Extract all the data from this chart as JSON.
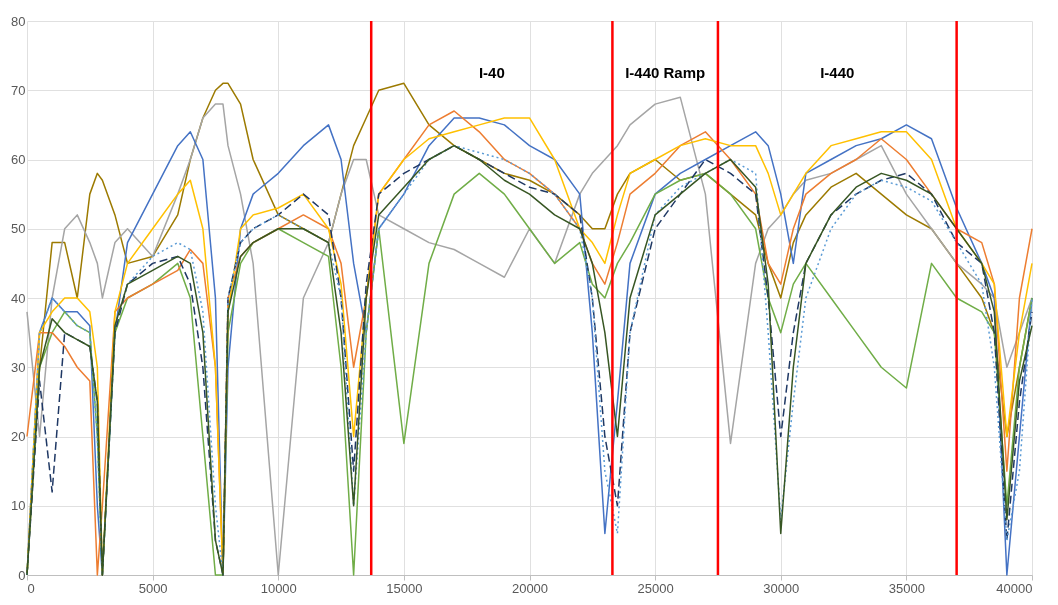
{
  "chart_data": {
    "type": "line",
    "x": [
      0,
      500,
      1000,
      1500,
      2000,
      2500,
      2800,
      3000,
      3500,
      4000,
      5000,
      6000,
      6500,
      7000,
      7500,
      7800,
      8000,
      8500,
      9000,
      10000,
      11000,
      12000,
      12500,
      13000,
      13500,
      14000,
      15000,
      16000,
      17000,
      18000,
      19000,
      20000,
      21000,
      22000,
      22500,
      23000,
      23500,
      24000,
      25000,
      26000,
      27000,
      28000,
      29000,
      29500,
      30000,
      30500,
      31000,
      32000,
      33000,
      34000,
      35000,
      36000,
      37000,
      38000,
      38500,
      39000,
      39500,
      40000
    ],
    "series": [
      {
        "color": "#9c7a00",
        "values": [
          0,
          30,
          48,
          48,
          40,
          55,
          58,
          57,
          52,
          45,
          46,
          52,
          60,
          66,
          70,
          71,
          71,
          68,
          60,
          52,
          50,
          48,
          55,
          62,
          66,
          70,
          71,
          65,
          62,
          60,
          58,
          57,
          55,
          52,
          50,
          50,
          55,
          58,
          60,
          57,
          58,
          55,
          52,
          45,
          40,
          48,
          52,
          56,
          58,
          55,
          52,
          50,
          45,
          40,
          35,
          20,
          30,
          40
        ]
      },
      {
        "color": "#a5a5a5",
        "values": [
          38,
          20,
          40,
          50,
          52,
          48,
          45,
          40,
          48,
          50,
          46,
          55,
          60,
          66,
          68,
          68,
          62,
          55,
          45,
          0,
          40,
          48,
          55,
          60,
          60,
          52,
          50,
          48,
          47,
          45,
          43,
          50,
          45,
          55,
          58,
          60,
          62,
          65,
          68,
          69,
          55,
          19,
          45,
          50,
          52,
          55,
          57,
          58,
          60,
          62,
          55,
          50,
          45,
          42,
          40,
          30,
          35,
          40
        ]
      },
      {
        "color": "#4472c4",
        "values": [
          0,
          35,
          40,
          38,
          38,
          36,
          10,
          0,
          35,
          48,
          55,
          62,
          64,
          60,
          40,
          0,
          30,
          50,
          55,
          58,
          62,
          65,
          60,
          45,
          35,
          50,
          55,
          62,
          66,
          66,
          65,
          62,
          60,
          55,
          35,
          6,
          25,
          45,
          55,
          58,
          60,
          62,
          64,
          62,
          55,
          45,
          58,
          60,
          62,
          63,
          65,
          63,
          53,
          45,
          40,
          0,
          20,
          40
        ]
      },
      {
        "color": "#70ad47",
        "values": [
          0,
          30,
          35,
          38,
          36,
          35,
          20,
          0,
          35,
          40,
          42,
          45,
          40,
          20,
          0,
          0,
          35,
          45,
          48,
          50,
          48,
          46,
          30,
          0,
          35,
          50,
          19,
          45,
          55,
          58,
          55,
          50,
          45,
          48,
          42,
          40,
          45,
          48,
          55,
          57,
          58,
          55,
          50,
          40,
          35,
          42,
          45,
          40,
          35,
          30,
          27,
          45,
          40,
          38,
          35,
          10,
          30,
          40
        ]
      },
      {
        "color": "#ed7d31",
        "values": [
          20,
          35,
          35,
          33,
          30,
          28,
          0,
          10,
          38,
          40,
          42,
          44,
          47,
          45,
          30,
          0,
          40,
          46,
          48,
          50,
          52,
          50,
          45,
          30,
          40,
          55,
          60,
          65,
          67,
          64,
          60,
          58,
          55,
          50,
          45,
          42,
          48,
          55,
          58,
          62,
          64,
          60,
          55,
          45,
          42,
          50,
          55,
          58,
          60,
          63,
          60,
          55,
          50,
          48,
          42,
          15,
          40,
          50
        ]
      },
      {
        "color": "#ffc000",
        "values": [
          0,
          35,
          38,
          40,
          40,
          38,
          30,
          0,
          38,
          45,
          50,
          55,
          57,
          50,
          30,
          0,
          38,
          50,
          52,
          53,
          55,
          50,
          42,
          20,
          40,
          55,
          60,
          63,
          64,
          65,
          66,
          66,
          60,
          50,
          48,
          45,
          52,
          58,
          60,
          62,
          63,
          62,
          62,
          58,
          52,
          55,
          58,
          62,
          63,
          64,
          64,
          60,
          50,
          45,
          42,
          20,
          35,
          45
        ]
      },
      {
        "color": "#1f3864",
        "line_style": "dashed",
        "values": [
          0,
          28,
          12,
          35,
          34,
          33,
          25,
          0,
          35,
          42,
          45,
          46,
          42,
          30,
          5,
          0,
          40,
          48,
          50,
          52,
          55,
          52,
          40,
          15,
          42,
          55,
          58,
          60,
          62,
          60,
          58,
          56,
          55,
          52,
          40,
          20,
          10,
          35,
          50,
          55,
          60,
          58,
          55,
          40,
          20,
          35,
          45,
          52,
          55,
          57,
          58,
          55,
          48,
          45,
          35,
          5,
          25,
          38
        ]
      },
      {
        "color": "#5b9bd5",
        "line_style": "dotted",
        "values": [
          0,
          35,
          40,
          38,
          36,
          35,
          20,
          0,
          36,
          42,
          46,
          48,
          47,
          38,
          10,
          0,
          40,
          48,
          50,
          52,
          50,
          48,
          40,
          10,
          35,
          50,
          55,
          60,
          62,
          61,
          60,
          58,
          55,
          50,
          40,
          15,
          6,
          35,
          52,
          56,
          58,
          60,
          58,
          35,
          8,
          25,
          40,
          50,
          55,
          57,
          56,
          54,
          48,
          42,
          30,
          5,
          15,
          40
        ]
      },
      {
        "color": "#375623",
        "values": [
          0,
          30,
          37,
          35,
          34,
          33,
          25,
          0,
          36,
          42,
          44,
          46,
          45,
          35,
          5,
          0,
          38,
          46,
          48,
          50,
          50,
          48,
          35,
          10,
          40,
          52,
          56,
          60,
          62,
          60,
          57,
          55,
          52,
          50,
          45,
          35,
          20,
          40,
          52,
          55,
          58,
          60,
          56,
          42,
          6,
          30,
          45,
          52,
          56,
          58,
          57,
          55,
          50,
          45,
          38,
          8,
          28,
          36
        ]
      }
    ],
    "xlim": [
      0,
      40000
    ],
    "xticks": [
      0,
      5000,
      10000,
      15000,
      20000,
      25000,
      30000,
      35000,
      40000
    ],
    "ylim": [
      0,
      80
    ],
    "yticks": [
      0,
      10,
      20,
      30,
      40,
      50,
      60,
      70,
      80
    ],
    "grid": true,
    "line_style": "solid",
    "ref_lines": [
      {
        "axis": "x",
        "value": 13700,
        "color": "#ff0000"
      },
      {
        "axis": "x",
        "value": 23300,
        "color": "#ff0000"
      },
      {
        "axis": "x",
        "value": 27500,
        "color": "#ff0000"
      },
      {
        "axis": "x",
        "value": 37000,
        "color": "#ff0000"
      }
    ],
    "annotations": [
      "I-40",
      "I-440 Ramp",
      "I-440"
    ]
  }
}
